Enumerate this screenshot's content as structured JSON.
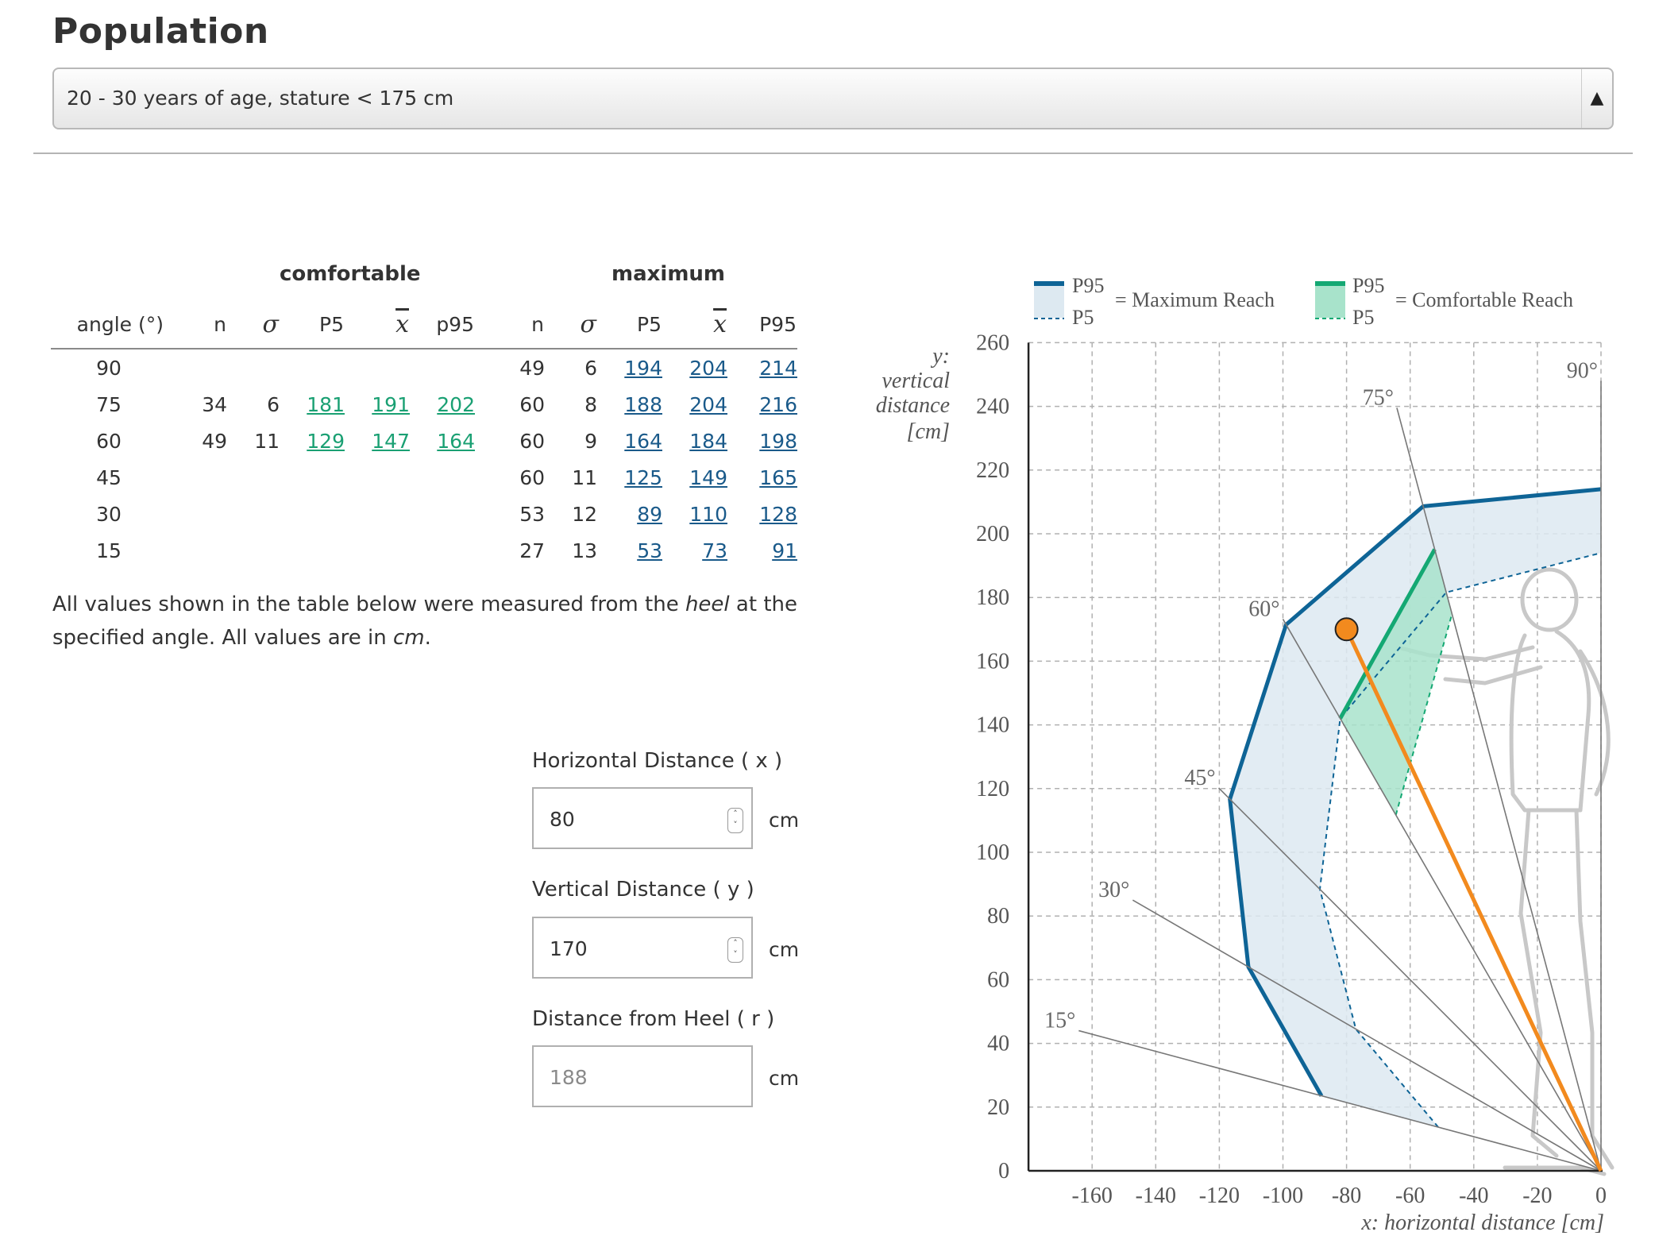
{
  "page": {
    "title": "Population",
    "population_select": {
      "value": "20 - 30 years of age, stature < 175 cm"
    }
  },
  "table": {
    "group_comfortable": "comfortable",
    "group_maximum": "maximum",
    "headers": {
      "angle": "angle (°)",
      "n": "n",
      "sigma": "σ",
      "p5": "P5",
      "xbar": "x",
      "p95_comfortable": "p95",
      "p95_maximum": "P95"
    },
    "rows": [
      {
        "angle": "90",
        "c_n": "",
        "c_sigma": "",
        "c_p5": "",
        "c_mean": "",
        "c_p95": "",
        "m_n": "49",
        "m_sigma": "6",
        "m_p5": "194",
        "m_mean": "204",
        "m_p95": "214"
      },
      {
        "angle": "75",
        "c_n": "34",
        "c_sigma": "6",
        "c_p5": "181",
        "c_mean": "191",
        "c_p95": "202",
        "m_n": "60",
        "m_sigma": "8",
        "m_p5": "188",
        "m_mean": "204",
        "m_p95": "216"
      },
      {
        "angle": "60",
        "c_n": "49",
        "c_sigma": "11",
        "c_p5": "129",
        "c_mean": "147",
        "c_p95": "164",
        "m_n": "60",
        "m_sigma": "9",
        "m_p5": "164",
        "m_mean": "184",
        "m_p95": "198"
      },
      {
        "angle": "45",
        "c_n": "",
        "c_sigma": "",
        "c_p5": "",
        "c_mean": "",
        "c_p95": "",
        "m_n": "60",
        "m_sigma": "11",
        "m_p5": "125",
        "m_mean": "149",
        "m_p95": "165"
      },
      {
        "angle": "30",
        "c_n": "",
        "c_sigma": "",
        "c_p5": "",
        "c_mean": "",
        "c_p95": "",
        "m_n": "53",
        "m_sigma": "12",
        "m_p5": "89",
        "m_mean": "110",
        "m_p95": "128"
      },
      {
        "angle": "15",
        "c_n": "",
        "c_sigma": "",
        "c_p5": "",
        "c_mean": "",
        "c_p95": "",
        "m_n": "27",
        "m_sigma": "13",
        "m_p5": "53",
        "m_mean": "73",
        "m_p95": "91"
      }
    ]
  },
  "note": {
    "part1": "All values shown in the table below were measured from the ",
    "heel": "heel",
    "part2": " at the specified angle. All values are in ",
    "cm": "cm",
    "part3": "."
  },
  "inputs": {
    "x": {
      "label": "Horizontal Distance ( x )",
      "value": "80",
      "unit": "cm"
    },
    "y": {
      "label": "Vertical Distance ( y )",
      "value": "170",
      "unit": "cm"
    },
    "r": {
      "label": "Distance from Heel ( r )",
      "placeholder": "188",
      "unit": "cm"
    }
  },
  "chart_data": {
    "type": "line",
    "xlabel": "x: horizontal distance [cm]",
    "ylabel": [
      "y:",
      "vertical",
      "distance",
      "[cm]"
    ],
    "xlim": [
      -180,
      0
    ],
    "ylim": [
      0,
      260
    ],
    "x_ticks": [
      -160,
      -140,
      -120,
      -100,
      -80,
      -60,
      -40,
      -20,
      0
    ],
    "y_ticks": [
      0,
      20,
      40,
      60,
      80,
      100,
      120,
      140,
      160,
      180,
      200,
      220,
      240,
      260
    ],
    "grid": true,
    "legend": {
      "p95": "P95",
      "p5": "P5",
      "max_label": "= Maximum Reach",
      "comf_label": "= Comfortable Reach"
    },
    "angle_labels": [
      "15°",
      "30°",
      "45°",
      "60°",
      "75°",
      "90°"
    ],
    "angles_deg": [
      15,
      30,
      45,
      60,
      75,
      90
    ],
    "colors": {
      "maximum": "#0e6496",
      "maximum_fill": "#dde9f1",
      "comfortable": "#14a873",
      "comfortable_fill": "#a8e3cb",
      "target": "#f28a1e",
      "grid": "#b0b0b0",
      "rays": "#777777"
    },
    "series": [
      {
        "name": "Maximum Reach P95",
        "r_by_angle": {
          "15": 91,
          "30": 128,
          "45": 165,
          "60": 198,
          "75": 216,
          "90": 214
        }
      },
      {
        "name": "Maximum Reach P5",
        "r_by_angle": {
          "15": 53,
          "30": 89,
          "45": 125,
          "60": 164,
          "75": 188,
          "90": 194
        }
      },
      {
        "name": "Comfortable Reach P95",
        "r_by_angle": {
          "60": 164,
          "75": 202
        }
      },
      {
        "name": "Comfortable Reach P5",
        "r_by_angle": {
          "60": 129,
          "75": 181
        }
      }
    ],
    "target_point": {
      "x": -80,
      "y": 170
    }
  }
}
